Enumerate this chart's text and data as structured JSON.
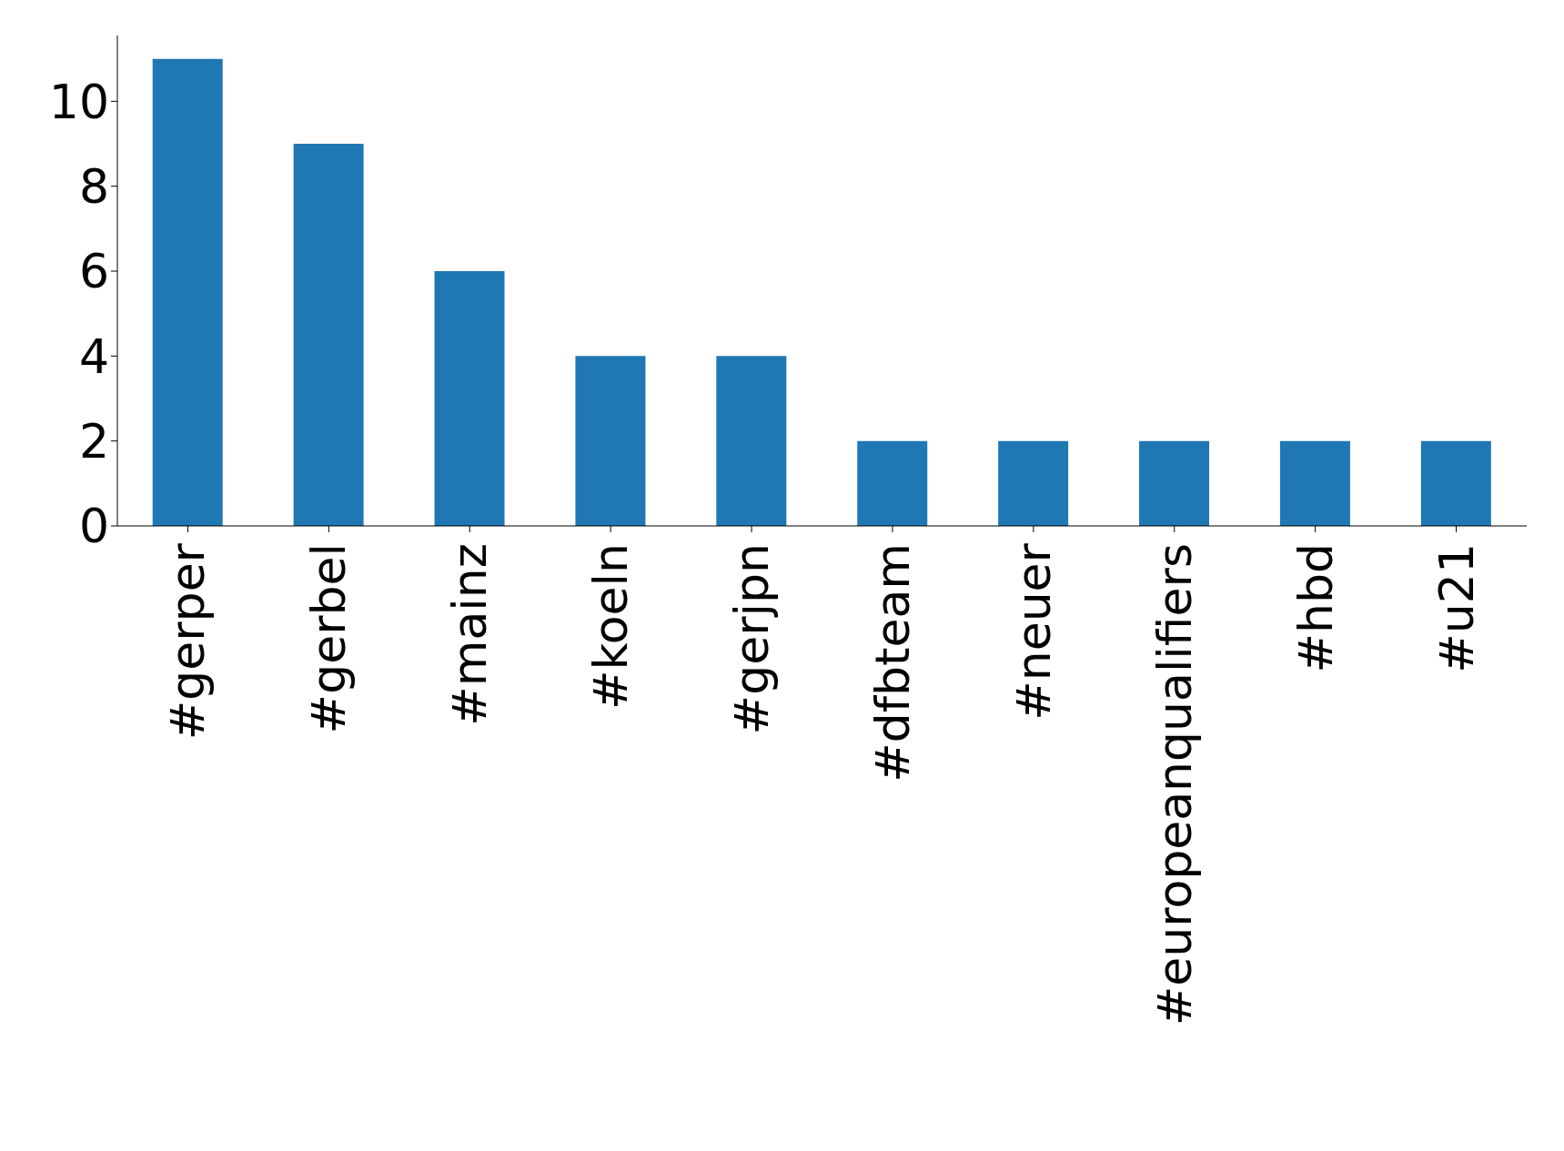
{
  "chart_data": {
    "type": "bar",
    "categories": [
      "#gerper",
      "#gerbel",
      "#mainz",
      "#koeln",
      "#gerjpn",
      "#dfbteam",
      "#neuer",
      "#europeanqualifiers",
      "#hbd",
      "#u21"
    ],
    "values": [
      11,
      9,
      6,
      4,
      4,
      2,
      2,
      2,
      2,
      2
    ],
    "color": "#1f77b4",
    "ylim": [
      0,
      11.55
    ],
    "yticks": [
      0,
      2,
      4,
      6,
      8,
      10
    ]
  }
}
